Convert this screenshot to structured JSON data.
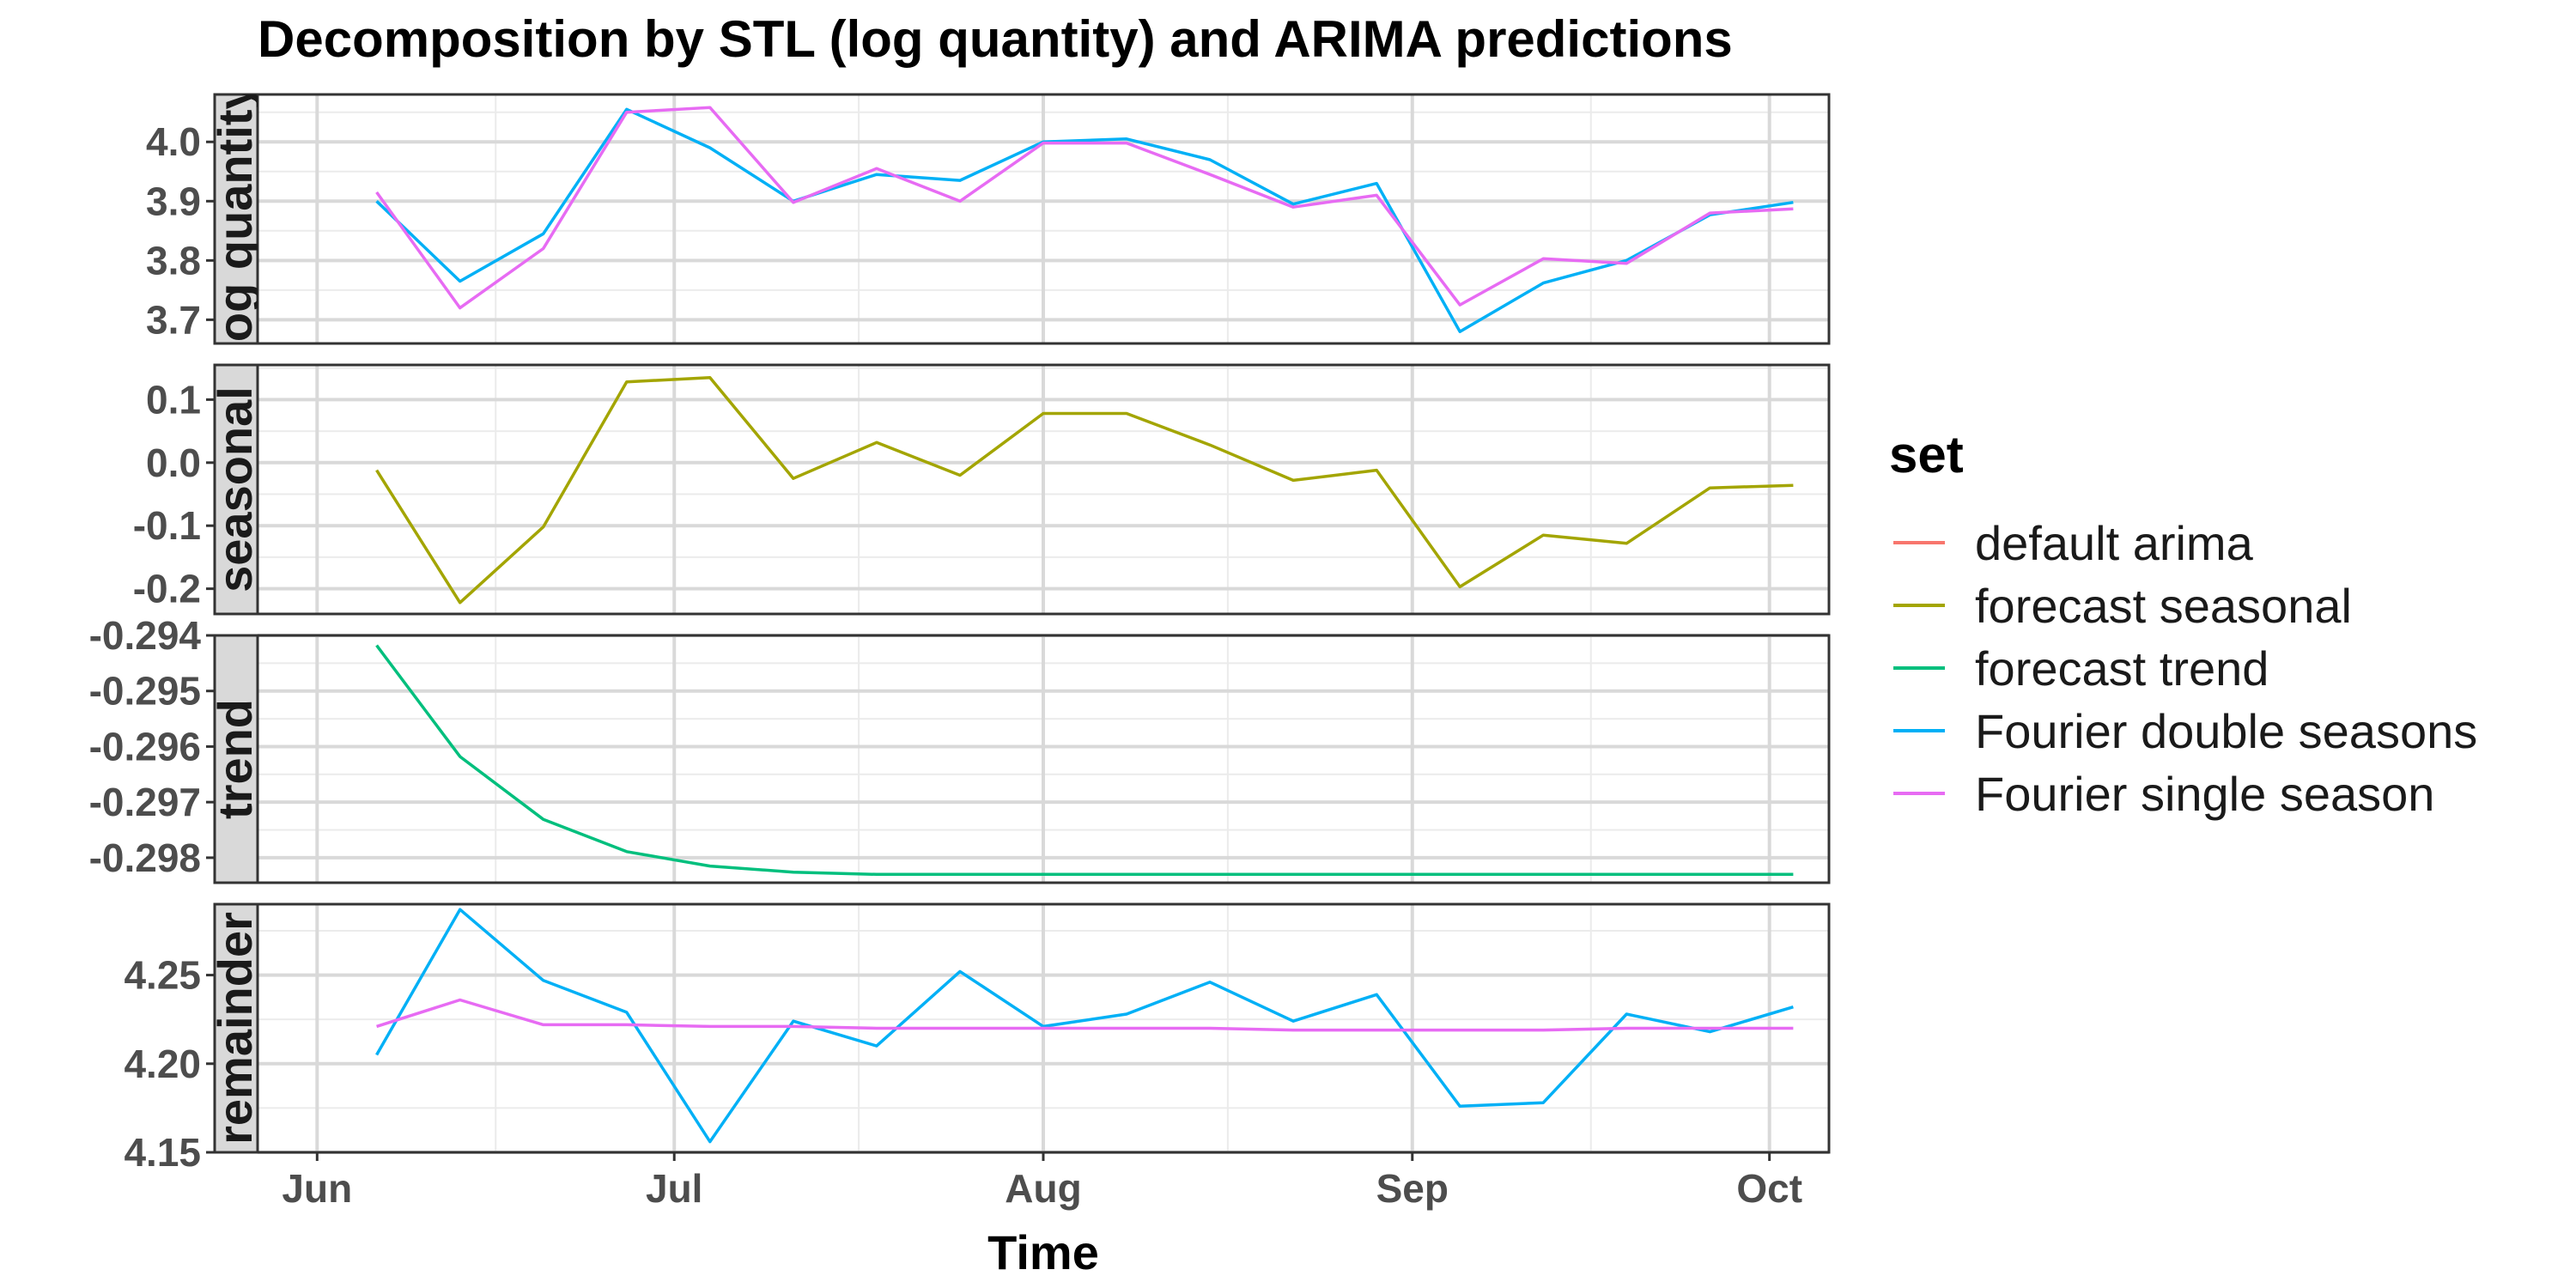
{
  "chart_data": {
    "type": "line",
    "title": "Decomposition by STL (log quantity) and ARIMA predictions",
    "xlabel": "Time",
    "x_ticks": [
      "Jun",
      "Jul",
      "Aug",
      "Sep",
      "Oct"
    ],
    "x_tick_dates": [
      "2024-06-01",
      "2024-07-01",
      "2024-08-01",
      "2024-09-01",
      "2024-10-01"
    ],
    "xlim": [
      "2023-05-27",
      "2024-10-06"
    ],
    "x": [
      "2024-06-06",
      "2024-06-13",
      "2024-06-20",
      "2024-06-27",
      "2024-07-04",
      "2024-07-11",
      "2024-07-18",
      "2024-07-25",
      "2024-08-01",
      "2024-08-08",
      "2024-08-15",
      "2024-08-22",
      "2024-08-29",
      "2024-09-05",
      "2024-09-12",
      "2024-09-19",
      "2024-09-26",
      "2024-10-03"
    ],
    "legend": {
      "title": "set",
      "position": "right",
      "entries": [
        {
          "label": "default arima",
          "color": "#F8766D"
        },
        {
          "label": "forecast seasonal",
          "color": "#A3A500"
        },
        {
          "label": "forecast trend",
          "color": "#00BF7D"
        },
        {
          "label": "Fourier double seasons",
          "color": "#00B0F6"
        },
        {
          "label": "Fourier single season",
          "color": "#E76BF3"
        }
      ]
    },
    "grid": true,
    "panels": [
      {
        "strip": "log quantity",
        "ylim": [
          3.66,
          4.08
        ],
        "y_ticks": [
          "3.7",
          "3.8",
          "3.9",
          "4.0"
        ],
        "y_tick_values": [
          3.7,
          3.8,
          3.9,
          4.0
        ],
        "series": [
          {
            "name": "Fourier double seasons",
            "color": "#00B0F6",
            "values": [
              3.9,
              3.765,
              3.845,
              4.055,
              3.99,
              3.9,
              3.945,
              3.935,
              4.0,
              4.005,
              3.97,
              3.895,
              3.93,
              3.68,
              3.762,
              3.8,
              3.877,
              3.898
            ]
          },
          {
            "name": "Fourier single season",
            "color": "#E76BF3",
            "values": [
              3.915,
              3.72,
              3.82,
              4.05,
              4.058,
              3.898,
              3.955,
              3.9,
              3.998,
              3.998,
              3.945,
              3.89,
              3.91,
              3.725,
              3.803,
              3.795,
              3.88,
              3.887
            ]
          }
        ]
      },
      {
        "strip": "seasonal",
        "ylim": [
          -0.24,
          0.155
        ],
        "y_ticks": [
          "-0.2",
          "-0.1",
          "0.0",
          "0.1"
        ],
        "y_tick_values": [
          -0.2,
          -0.1,
          0.0,
          0.1
        ],
        "series": [
          {
            "name": "forecast seasonal",
            "color": "#A3A500",
            "values": [
              -0.012,
              -0.222,
              -0.102,
              0.128,
              0.135,
              -0.025,
              0.032,
              -0.02,
              0.078,
              0.078,
              0.028,
              -0.028,
              -0.012,
              -0.197,
              -0.115,
              -0.128,
              -0.04,
              -0.036
            ]
          }
        ]
      },
      {
        "strip": "trend",
        "ylim": [
          -0.29845,
          -0.294
        ],
        "y_ticks": [
          "-0.298",
          "-0.297",
          "-0.296",
          "-0.295",
          "-0.294"
        ],
        "y_tick_values": [
          -0.298,
          -0.297,
          -0.296,
          -0.295,
          -0.294
        ],
        "series": [
          {
            "name": "forecast trend",
            "color": "#00BF7D",
            "values": [
              -0.29418,
              -0.29618,
              -0.29731,
              -0.29789,
              -0.29815,
              -0.29826,
              -0.2983,
              -0.2983,
              -0.2983,
              -0.2983,
              -0.2983,
              -0.2983,
              -0.2983,
              -0.2983,
              -0.2983,
              -0.2983,
              -0.2983,
              -0.2983
            ]
          }
        ]
      },
      {
        "strip": "remainder",
        "ylim": [
          4.15,
          4.29
        ],
        "y_ticks": [
          "4.15",
          "4.20",
          "4.25"
        ],
        "y_tick_values": [
          4.15,
          4.2,
          4.25
        ],
        "series": [
          {
            "name": "Fourier double seasons",
            "color": "#00B0F6",
            "values": [
              4.205,
              4.287,
              4.247,
              4.229,
              4.156,
              4.224,
              4.21,
              4.252,
              4.221,
              4.228,
              4.246,
              4.224,
              4.239,
              4.176,
              4.178,
              4.228,
              4.218,
              4.232
            ]
          },
          {
            "name": "Fourier single season",
            "color": "#E76BF3",
            "values": [
              4.221,
              4.236,
              4.222,
              4.222,
              4.221,
              4.221,
              4.22,
              4.22,
              4.22,
              4.22,
              4.22,
              4.219,
              4.219,
              4.219,
              4.219,
              4.22,
              4.22,
              4.22
            ]
          }
        ]
      }
    ]
  }
}
